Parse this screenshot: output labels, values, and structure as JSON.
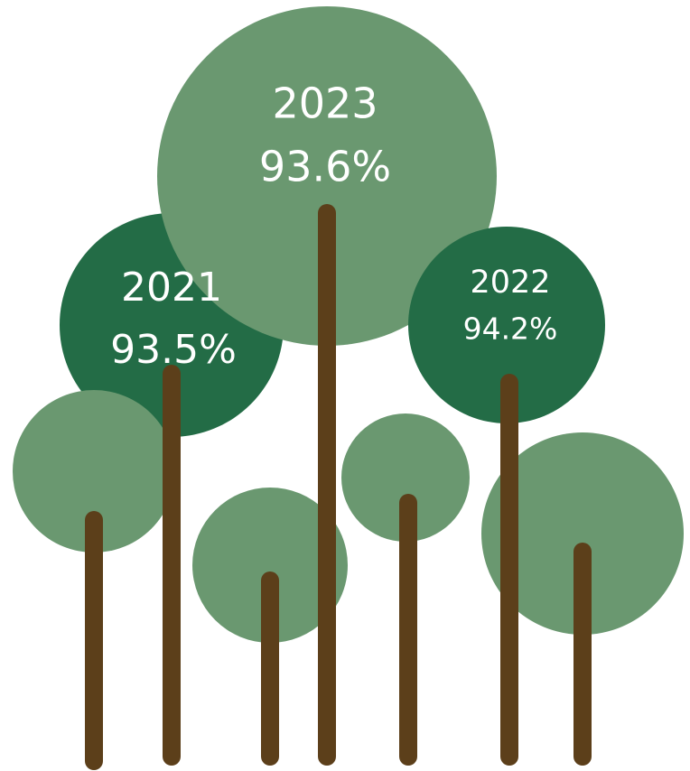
{
  "trees": [
    {
      "year": "2021",
      "value": "93.5%"
    },
    {
      "year": "2023",
      "value": "93.6%"
    },
    {
      "year": "2022",
      "value": "94.2%"
    }
  ]
}
